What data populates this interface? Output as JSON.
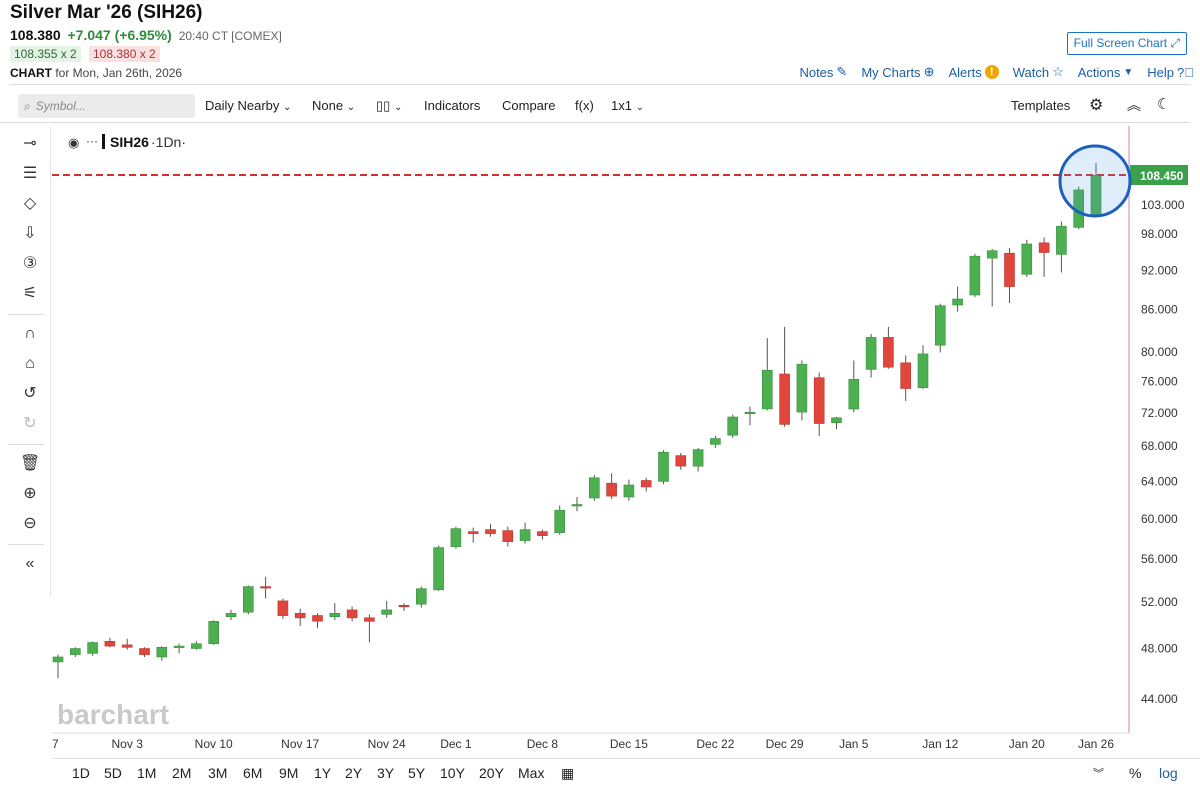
{
  "header": {
    "title": "Silver Mar '26 (SIH26)",
    "last": "108.380",
    "change": "+7.047 (+6.95%)",
    "time": "20:40 CT [COMEX]",
    "bid": "108.355 x 2",
    "ask": "108.380 x 2",
    "chart_label": "CHART",
    "chart_for": "for Mon, Jan 26th, 2026",
    "full_screen": "Full Screen Chart"
  },
  "toplinks": {
    "notes": "Notes",
    "my_charts": "My Charts",
    "alerts": "Alerts",
    "watch": "Watch",
    "actions": "Actions",
    "help": "Help"
  },
  "toolbar": {
    "search_placeholder": "Symbol...",
    "nearby": "Daily Nearby",
    "none": "None",
    "indicators": "Indicators",
    "compare": "Compare",
    "fx": "f(x)",
    "layout": "1x1",
    "templates": "Templates"
  },
  "legend": {
    "symbol": "SIH26",
    "interval": "·1Dn·"
  },
  "watermark": "barchart",
  "bottom": {
    "ranges": [
      "1D",
      "5D",
      "1M",
      "2M",
      "3M",
      "6M",
      "9M",
      "1Y",
      "2Y",
      "3Y",
      "5Y",
      "10Y",
      "20Y",
      "Max"
    ],
    "percent": "%",
    "log": "log"
  },
  "colors": {
    "up": "#4cb050",
    "down": "#e0463c",
    "line": "#d42f2f",
    "price_tag": "#3aa14a",
    "highlight": "#1b5fbf"
  },
  "chart_data": {
    "type": "candlestick",
    "title": "SIH26 ·1Dn·",
    "price_tag": "108.450",
    "current_price": 108.45,
    "y_scale": "log",
    "ylim": [
      41.5,
      118
    ],
    "y_ticks": [
      "103.000",
      "98.000",
      "92.000",
      "86.000",
      "80.000",
      "76.000",
      "72.000",
      "68.000",
      "64.000",
      "60.000",
      "56.000",
      "52.000",
      "48.000",
      "44.000"
    ],
    "x_labels": [
      "7",
      "Nov 3",
      "Nov 10",
      "Nov 17",
      "Nov 24",
      "Dec 1",
      "Dec 8",
      "Dec 15",
      "Dec 22",
      "Dec 29",
      "Jan 5",
      "Jan 12",
      "Jan 20",
      "Jan 26"
    ],
    "candles": [
      {
        "o": 46.9,
        "h": 47.5,
        "l": 45.6,
        "c": 47.3
      },
      {
        "o": 47.5,
        "h": 48.1,
        "l": 47.3,
        "c": 48.0
      },
      {
        "o": 47.6,
        "h": 48.6,
        "l": 47.4,
        "c": 48.5
      },
      {
        "o": 48.6,
        "h": 48.9,
        "l": 48.1,
        "c": 48.2
      },
      {
        "o": 48.3,
        "h": 48.8,
        "l": 47.9,
        "c": 48.1
      },
      {
        "o": 48.0,
        "h": 48.1,
        "l": 47.3,
        "c": 47.5
      },
      {
        "o": 47.3,
        "h": 48.2,
        "l": 47.0,
        "c": 48.1
      },
      {
        "o": 48.1,
        "h": 48.4,
        "l": 47.6,
        "c": 48.2
      },
      {
        "o": 48.0,
        "h": 48.6,
        "l": 47.9,
        "c": 48.4
      },
      {
        "o": 48.4,
        "h": 50.4,
        "l": 48.3,
        "c": 50.3
      },
      {
        "o": 50.7,
        "h": 51.3,
        "l": 50.4,
        "c": 51.0
      },
      {
        "o": 51.1,
        "h": 53.5,
        "l": 50.9,
        "c": 53.4
      },
      {
        "o": 53.4,
        "h": 54.3,
        "l": 52.3,
        "c": 53.3
      },
      {
        "o": 52.1,
        "h": 52.3,
        "l": 50.5,
        "c": 50.8
      },
      {
        "o": 51.0,
        "h": 51.4,
        "l": 49.9,
        "c": 50.6
      },
      {
        "o": 50.8,
        "h": 51.0,
        "l": 49.7,
        "c": 50.3
      },
      {
        "o": 50.7,
        "h": 51.9,
        "l": 50.4,
        "c": 51.0
      },
      {
        "o": 51.3,
        "h": 51.6,
        "l": 50.3,
        "c": 50.6
      },
      {
        "o": 50.6,
        "h": 50.9,
        "l": 48.5,
        "c": 50.3
      },
      {
        "o": 50.9,
        "h": 52.1,
        "l": 50.6,
        "c": 51.3
      },
      {
        "o": 51.7,
        "h": 51.9,
        "l": 51.2,
        "c": 51.6
      },
      {
        "o": 51.8,
        "h": 53.4,
        "l": 51.5,
        "c": 53.2
      },
      {
        "o": 53.1,
        "h": 57.3,
        "l": 53.0,
        "c": 57.1
      },
      {
        "o": 57.2,
        "h": 59.2,
        "l": 57.0,
        "c": 59.0
      },
      {
        "o": 58.7,
        "h": 59.1,
        "l": 57.6,
        "c": 58.5
      },
      {
        "o": 58.9,
        "h": 59.5,
        "l": 58.2,
        "c": 58.5
      },
      {
        "o": 58.8,
        "h": 59.2,
        "l": 57.2,
        "c": 57.7
      },
      {
        "o": 57.8,
        "h": 59.6,
        "l": 57.5,
        "c": 58.9
      },
      {
        "o": 58.7,
        "h": 58.9,
        "l": 57.9,
        "c": 58.3
      },
      {
        "o": 58.6,
        "h": 61.4,
        "l": 58.4,
        "c": 60.9
      },
      {
        "o": 61.4,
        "h": 62.3,
        "l": 60.8,
        "c": 61.5
      },
      {
        "o": 62.2,
        "h": 64.7,
        "l": 61.9,
        "c": 64.4
      },
      {
        "o": 63.8,
        "h": 64.9,
        "l": 62.1,
        "c": 62.4
      },
      {
        "o": 62.3,
        "h": 64.2,
        "l": 61.9,
        "c": 63.6
      },
      {
        "o": 64.1,
        "h": 64.4,
        "l": 62.9,
        "c": 63.4
      },
      {
        "o": 64.0,
        "h": 67.5,
        "l": 63.7,
        "c": 67.3
      },
      {
        "o": 66.9,
        "h": 67.2,
        "l": 65.3,
        "c": 65.7
      },
      {
        "o": 65.7,
        "h": 67.8,
        "l": 65.1,
        "c": 67.6
      },
      {
        "o": 68.2,
        "h": 69.2,
        "l": 67.8,
        "c": 68.9
      },
      {
        "o": 69.3,
        "h": 71.8,
        "l": 69.0,
        "c": 71.5
      },
      {
        "o": 72.0,
        "h": 72.8,
        "l": 70.5,
        "c": 72.1
      },
      {
        "o": 72.5,
        "h": 81.9,
        "l": 72.3,
        "c": 77.5
      },
      {
        "o": 77.0,
        "h": 83.5,
        "l": 70.3,
        "c": 70.6
      },
      {
        "o": 72.1,
        "h": 78.8,
        "l": 71.1,
        "c": 78.3
      },
      {
        "o": 76.5,
        "h": 77.2,
        "l": 69.2,
        "c": 70.7
      },
      {
        "o": 70.8,
        "h": 71.5,
        "l": 70.0,
        "c": 71.4
      },
      {
        "o": 72.5,
        "h": 78.8,
        "l": 72.1,
        "c": 76.3
      },
      {
        "o": 77.6,
        "h": 82.5,
        "l": 76.5,
        "c": 82.0
      },
      {
        "o": 82.0,
        "h": 83.5,
        "l": 77.7,
        "c": 77.9
      },
      {
        "o": 78.5,
        "h": 79.5,
        "l": 73.5,
        "c": 75.1
      },
      {
        "o": 75.2,
        "h": 80.9,
        "l": 75.0,
        "c": 79.7
      },
      {
        "o": 80.9,
        "h": 86.9,
        "l": 79.9,
        "c": 86.6
      },
      {
        "o": 86.7,
        "h": 89.5,
        "l": 85.7,
        "c": 87.6
      },
      {
        "o": 88.2,
        "h": 94.7,
        "l": 87.9,
        "c": 94.3
      },
      {
        "o": 94.0,
        "h": 95.5,
        "l": 86.5,
        "c": 95.2
      },
      {
        "o": 94.8,
        "h": 95.6,
        "l": 87.0,
        "c": 89.5
      },
      {
        "o": 91.4,
        "h": 97.0,
        "l": 91.0,
        "c": 96.3
      },
      {
        "o": 96.5,
        "h": 97.4,
        "l": 91.0,
        "c": 94.9
      },
      {
        "o": 94.6,
        "h": 100.1,
        "l": 91.7,
        "c": 99.3
      },
      {
        "o": 99.1,
        "h": 106.3,
        "l": 98.8,
        "c": 105.7
      },
      {
        "o": 101.3,
        "h": 110.7,
        "l": 101.0,
        "c": 108.4
      }
    ]
  }
}
